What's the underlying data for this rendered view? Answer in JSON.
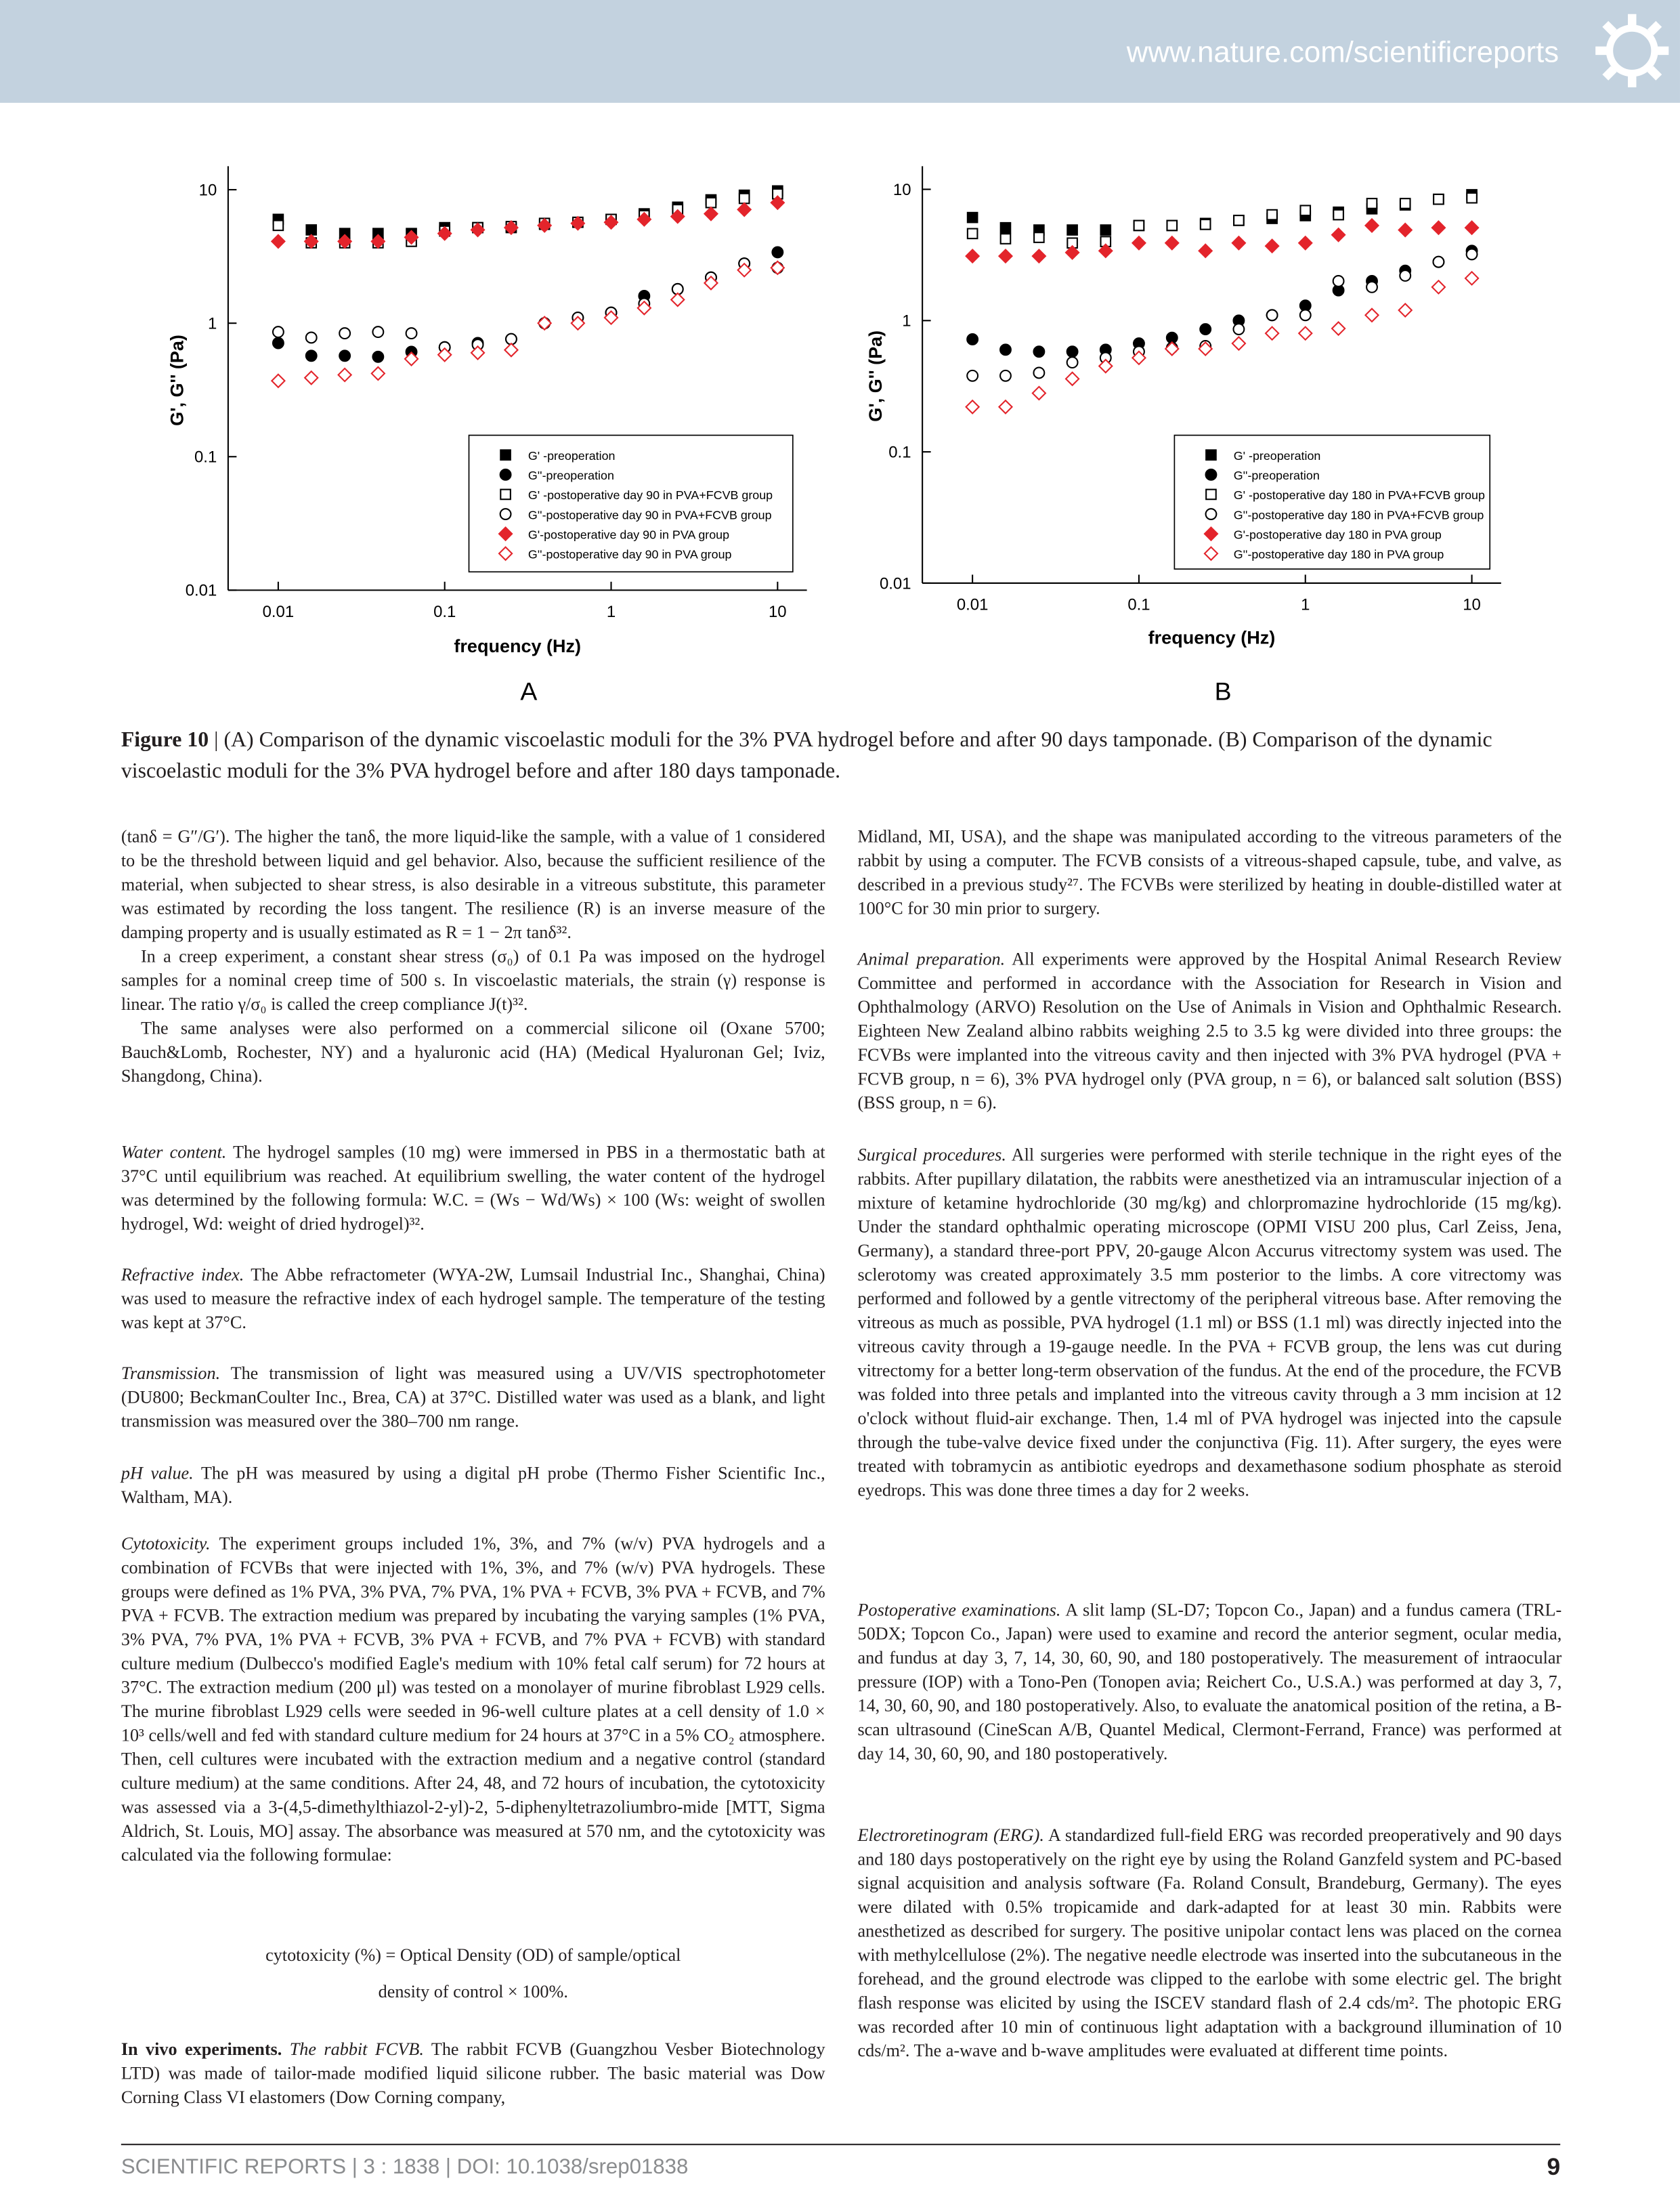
{
  "header": {
    "url": "www.nature.com/scientificreports"
  },
  "chart_data": [
    {
      "type": "scatter",
      "panel_label": "A",
      "xlabel": "frequency (Hz)",
      "ylabel": "G', G'' (Pa)",
      "log_x": true,
      "log_y": true,
      "legend": "lower right",
      "xlim": [
        0.005,
        15
      ],
      "ylim": [
        0.01,
        15
      ],
      "xticks": [
        0.01,
        0.1,
        1,
        10
      ],
      "yticks": [
        0.01,
        0.1,
        1,
        10
      ],
      "x": [
        0.01,
        0.0158,
        0.0251,
        0.0398,
        0.0631,
        0.1,
        0.158,
        0.251,
        0.398,
        0.631,
        1,
        1.58,
        2.51,
        3.98,
        6.31,
        10
      ],
      "series": [
        {
          "name": "G' -preoperation",
          "color": "#000000",
          "marker": "square",
          "filled": true,
          "values": [
            6.0,
            5.0,
            4.7,
            4.7,
            4.7,
            5.2,
            5.2,
            5.2,
            5.5,
            5.7,
            6.0,
            6.6,
            7.4,
            8.4,
            9.1,
            9.8
          ]
        },
        {
          "name": "G''-preoperation",
          "color": "#000000",
          "marker": "circle",
          "filled": true,
          "values": [
            0.71,
            0.57,
            0.57,
            0.56,
            0.61,
            0.66,
            0.71,
            0.76,
            1.0,
            1.1,
            1.2,
            1.6,
            1.8,
            2.2,
            2.8,
            3.4
          ]
        },
        {
          "name": "G' -postoperative day 90 in PVA+FCVB group",
          "color": "#000000",
          "marker": "square",
          "filled": false,
          "values": [
            5.4,
            4.0,
            4.0,
            4.0,
            4.1,
            4.9,
            5.2,
            5.3,
            5.6,
            5.7,
            6.0,
            6.4,
            7.1,
            8.0,
            8.6,
            9.3
          ]
        },
        {
          "name": "G''-postoperative day 90 in PVA+FCVB group",
          "color": "#000000",
          "marker": "circle",
          "filled": false,
          "values": [
            0.86,
            0.78,
            0.84,
            0.86,
            0.84,
            0.66,
            0.69,
            0.76,
            1.0,
            1.1,
            1.2,
            1.4,
            1.8,
            2.2,
            2.8,
            2.6
          ]
        },
        {
          "name": "G'-postoperative day 90 in PVA group",
          "color": "#e3242b",
          "marker": "diamond",
          "filled": true,
          "values": [
            4.1,
            4.1,
            4.1,
            4.1,
            4.4,
            4.7,
            5.0,
            5.2,
            5.4,
            5.6,
            5.7,
            6.0,
            6.3,
            6.6,
            7.1,
            8.0
          ]
        },
        {
          "name": "G''-postoperative day 90 in PVA group",
          "color": "#e3242b",
          "marker": "diamond",
          "filled": false,
          "values": [
            0.37,
            0.39,
            0.41,
            0.42,
            0.54,
            0.58,
            0.6,
            0.63,
            1.0,
            1.0,
            1.1,
            1.3,
            1.5,
            2.0,
            2.5,
            2.6
          ]
        }
      ]
    },
    {
      "type": "scatter",
      "panel_label": "B",
      "xlabel": "frequency (Hz)",
      "ylabel": "G', G'' (Pa)",
      "log_x": true,
      "log_y": true,
      "legend": "lower right",
      "xlim": [
        0.005,
        15
      ],
      "ylim": [
        0.01,
        15
      ],
      "xticks": [
        0.01,
        0.1,
        1,
        10
      ],
      "yticks": [
        0.01,
        0.1,
        1,
        10
      ],
      "x": [
        0.01,
        0.0158,
        0.0251,
        0.0398,
        0.0631,
        0.1,
        0.158,
        0.251,
        0.398,
        0.631,
        1,
        1.58,
        2.51,
        3.98,
        6.31,
        10
      ],
      "series": [
        {
          "name": "G' -preoperation",
          "color": "#000000",
          "marker": "square",
          "filled": true,
          "values": [
            6.1,
            5.1,
            4.9,
            4.9,
            4.9,
            5.3,
            5.3,
            5.5,
            5.8,
            6.0,
            6.3,
            6.7,
            7.1,
            7.6,
            8.4,
            9.1
          ]
        },
        {
          "name": "G''-preoperation",
          "color": "#000000",
          "marker": "circle",
          "filled": true,
          "values": [
            0.72,
            0.6,
            0.58,
            0.58,
            0.6,
            0.67,
            0.74,
            0.86,
            1.0,
            1.1,
            1.3,
            1.7,
            2.0,
            2.4,
            2.8,
            3.4
          ]
        },
        {
          "name": "G' -postoperative day 180 in PVA+FCVB group",
          "color": "#000000",
          "marker": "square",
          "filled": false,
          "values": [
            4.6,
            4.2,
            4.3,
            3.9,
            4.0,
            5.3,
            5.3,
            5.4,
            5.8,
            6.4,
            6.9,
            6.4,
            7.8,
            7.8,
            8.4,
            8.6
          ]
        },
        {
          "name": "G''-postoperative day 180 in PVA+FCVB group",
          "color": "#000000",
          "marker": "circle",
          "filled": false,
          "values": [
            0.38,
            0.38,
            0.4,
            0.48,
            0.52,
            0.58,
            0.62,
            0.64,
            0.86,
            1.1,
            1.1,
            2.0,
            1.8,
            2.2,
            2.8,
            3.2
          ]
        },
        {
          "name": "G'-postoperative day 180 in PVA group",
          "color": "#e3242b",
          "marker": "diamond",
          "filled": true,
          "values": [
            3.1,
            3.1,
            3.1,
            3.3,
            3.4,
            3.9,
            3.9,
            3.4,
            3.9,
            3.7,
            3.9,
            4.5,
            5.3,
            4.9,
            5.1,
            5.1
          ]
        },
        {
          "name": "G''-postoperative day 180 in PVA group",
          "color": "#e3242b",
          "marker": "diamond",
          "filled": false,
          "values": [
            0.22,
            0.22,
            0.28,
            0.36,
            0.45,
            0.52,
            0.61,
            0.61,
            0.67,
            0.8,
            0.8,
            0.87,
            1.1,
            1.2,
            1.8,
            2.1
          ]
        }
      ]
    }
  ],
  "caption": {
    "label": "Figure 10",
    "text": "| (A) Comparison of the dynamic viscoelastic moduli for the 3% PVA hydrogel before and after 90 days tamponade. (B) Comparison of the dynamic viscoelastic moduli for the 3% PVA hydrogel before and after 180 days tamponade."
  },
  "left_column": {
    "p1": "(tanδ = G″/G′). The higher the tanδ, the more liquid-like the sample, with a value of 1 considered to be the threshold between liquid and gel behavior. Also, because the sufficient resilience of the material, when subjected to shear stress, is also desirable in a vitreous substitute, this parameter was estimated by recording the loss tangent. The resilience (R) is an inverse measure of the damping property and is usually estimated as R = 1 − 2π tanδ³².",
    "p2": "In a creep experiment, a constant shear stress (σ₀) of 0.1 Pa was imposed on the hydrogel samples for a nominal creep time of 500 s. In viscoelastic materials, the strain (γ) response is linear. The ratio γ/σ₀ is called the creep compliance J(t)³².",
    "p3": "The same analyses were also performed on a commercial silicone oil (Oxane 5700; Bauch&Lomb, Rochester, NY) and a hyaluronic acid (HA) (Medical Hyaluronan Gel; Iviz, Shangdong, China).",
    "water": {
      "heading": "Water content.",
      "text": " The hydrogel samples (10 mg) were immersed in PBS in a thermostatic bath at 37°C until equilibrium was reached. At equilibrium swelling, the water content of the hydrogel was determined by the following formula: W.C. = (Ws − Wd/Ws) × 100 (Ws: weight of swollen hydrogel, Wd: weight of dried hydrogel)³²."
    },
    "refractive": {
      "heading": "Refractive index.",
      "text": " The Abbe refractometer (WYA-2W, Lumsail Industrial Inc., Shanghai, China) was used to measure the refractive index of each hydrogel sample. The temperature of the testing was kept at 37°C."
    },
    "transmission": {
      "heading": "Transmission.",
      "text": " The transmission of light was measured using a UV/VIS spectrophotometer (DU800; BeckmanCoulter Inc., Brea, CA) at 37°C. Distilled water was used as a blank, and light transmission was measured over the 380–700 nm range."
    },
    "ph": {
      "heading": "pH value.",
      "text": " The pH was measured by using a digital pH probe (Thermo Fisher Scientific Inc., Waltham, MA)."
    },
    "cytotoxicity": {
      "heading": "Cytotoxicity.",
      "text": " The experiment groups included 1%, 3%, and 7% (w/v) PVA hydrogels and a combination of FCVBs that were injected with 1%, 3%, and 7% (w/v) PVA hydrogels. These groups were defined as 1% PVA, 3% PVA, 7% PVA, 1% PVA + FCVB, 3% PVA + FCVB, and 7% PVA + FCVB. The extraction medium was prepared by incubating the varying samples (1% PVA, 3% PVA, 7% PVA, 1% PVA + FCVB, 3% PVA + FCVB, and 7% PVA + FCVB) with standard culture medium (Dulbecco's modified Eagle's medium with 10% fetal calf serum) for 72 hours at 37°C. The extraction medium (200 μl) was tested on a monolayer of murine fibroblast L929 cells. The murine fibroblast L929 cells were seeded in 96-well culture plates at a cell density of 1.0 × 10³ cells/well and fed with standard culture medium for 24 hours at 37°C in a 5% CO₂ atmosphere. Then, cell cultures were incubated with the extraction medium and a negative control (standard culture medium) at the same conditions. After 24, 48, and 72 hours of incubation, the cytotoxicity was assessed via a 3-(4,5-dimethylthiazol-2-yl)-2, 5-diphenyltetrazoliumbro-mide [MTT, Sigma Aldrich, St. Louis, MO] assay. The absorbance was measured at 570 nm, and the cytotoxicity was calculated via the following formulae:"
    },
    "formula_1": "cytotoxicity (%) = Optical Density (OD) of sample/optical",
    "formula_2": "density of control × 100%.",
    "invivo": {
      "heading": "In vivo experiments.",
      "subheading": " The rabbit FCVB.",
      "text": " The rabbit FCVB (Guangzhou Vesber Biotechnology LTD) was made of tailor-made modified liquid silicone rubber. The basic material was Dow Corning Class VI elastomers (Dow Corning company,"
    }
  },
  "right_column": {
    "p1": "Midland, MI, USA), and the shape was manipulated according to the vitreous parameters of the rabbit by using a computer. The FCVB consists of a vitreous-shaped capsule, tube, and valve, as described in a previous study²⁷. The FCVBs were sterilized by heating in double-distilled water at 100°C for 30 min prior to surgery.",
    "animal": {
      "heading": "Animal preparation.",
      "text": " All experiments were approved by the Hospital Animal Research Review Committee and performed in accordance with the Association for Research in Vision and Ophthalmology (ARVO) Resolution on the Use of Animals in Vision and Ophthalmic Research. Eighteen New Zealand albino rabbits weighing 2.5 to 3.5 kg were divided into three groups: the FCVBs were implanted into the vitreous cavity and then injected with 3% PVA hydrogel (PVA + FCVB group, n = 6), 3% PVA hydrogel only (PVA group, n = 6), or balanced salt solution (BSS) (BSS group, n = 6)."
    },
    "surgical": {
      "heading": "Surgical procedures.",
      "text": " All surgeries were performed with sterile technique in the right eyes of the rabbits. After pupillary dilatation, the rabbits were anesthetized via an intramuscular injection of a mixture of ketamine hydrochloride (30 mg/kg) and chlorpromazine hydrochloride (15 mg/kg). Under the standard ophthalmic operating microscope (OPMI VISU 200 plus, Carl Zeiss, Jena, Germany), a standard three-port PPV, 20-gauge Alcon Accurus vitrectomy system was used. The sclerotomy was created approximately 3.5 mm posterior to the limbs. A core vitrectomy was performed and followed by a gentle vitrectomy of the peripheral vitreous base. After removing the vitreous as much as possible, PVA hydrogel (1.1 ml) or BSS (1.1 ml) was directly injected into the vitreous cavity through a 19-gauge needle. In the PVA + FCVB group, the lens was cut during vitrectomy for a better long-term observation of the fundus. At the end of the procedure, the FCVB was folded into three petals and implanted into the vitreous cavity through a 3 mm incision at 12 o'clock without fluid-air exchange. Then, 1.4 ml of PVA hydrogel was injected into the capsule through the tube-valve device fixed under the conjunctiva (Fig. 11). After surgery, the eyes were treated with tobramycin as antibiotic eyedrops and dexamethasone sodium phosphate as steroid eyedrops. This was done three times a day for 2 weeks."
    },
    "postop": {
      "heading": "Postoperative examinations.",
      "text": " A slit lamp (SL-D7; Topcon Co., Japan) and a fundus camera (TRL-50DX; Topcon Co., Japan) were used to examine and record the anterior segment, ocular media, and fundus at day 3, 7, 14, 30, 60, 90, and 180 postoperatively. The measurement of intraocular pressure (IOP) with a Tono-Pen (Tonopen avia; Reichert Co., U.S.A.) was performed at day 3, 7, 14, 30, 60, 90, and 180 postoperatively. Also, to evaluate the anatomical position of the retina, a B-scan ultrasound (CineScan A/B, Quantel Medical, Clermont-Ferrand, France) was performed at day 14, 30, 60, 90, and 180 postoperatively."
    },
    "erg": {
      "heading": "Electroretinogram (ERG).",
      "text": " A standardized full-field ERG was recorded preoperatively and 90 days and 180 days postoperatively on the right eye by using the Roland Ganzfeld system and PC-based signal acquisition and analysis software (Fa. Roland Consult, Brandeburg, Germany). The eyes were dilated with 0.5% tropicamide and dark-adapted for at least 30 min. Rabbits were anesthetized as described for surgery. The positive unipolar contact lens was placed on the cornea with methylcellulose (2%). The negative needle electrode was inserted into the subcutaneous in the forehead, and the ground electrode was clipped to the earlobe with some electric gel. The bright flash response was elicited by using the ISCEV standard flash of 2.4 cds/m². The photopic ERG was recorded after 10 min of continuous light adaptation with a background illumination of 10 cds/m². The a-wave and b-wave amplitudes were evaluated at different time points."
    }
  },
  "footer": {
    "journal": "SCIENTIFIC REPORTS",
    "citation": " | 3 : 1838 | DOI: 10.1038/srep01838",
    "page": "9"
  }
}
